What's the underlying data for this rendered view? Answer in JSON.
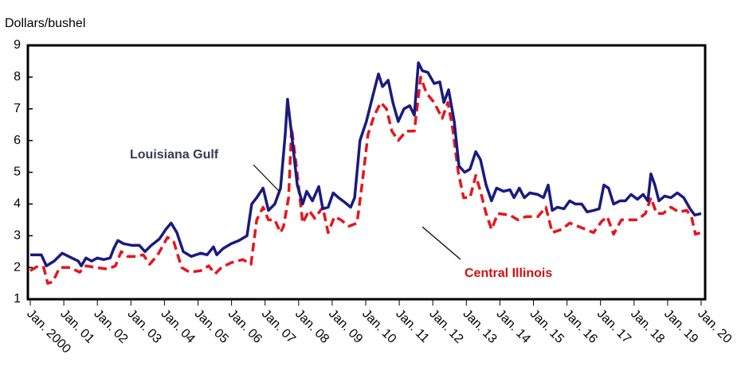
{
  "chart_data": {
    "type": "line",
    "ylabel": "Dollars/bushel",
    "ylim": [
      1,
      9
    ],
    "yticks": [
      1,
      2,
      3,
      4,
      5,
      6,
      7,
      8,
      9
    ],
    "xlim": [
      2000,
      2020
    ],
    "xticks": [
      {
        "value": 2000,
        "label": "Jan. 2000"
      },
      {
        "value": 2001,
        "label": "Jan. 01"
      },
      {
        "value": 2002,
        "label": "Jan. 02"
      },
      {
        "value": 2003,
        "label": "Jan. 03"
      },
      {
        "value": 2004,
        "label": "Jan. 04"
      },
      {
        "value": 2005,
        "label": "Jan. 05"
      },
      {
        "value": 2006,
        "label": "Jan. 06"
      },
      {
        "value": 2007,
        "label": "Jan. 07"
      },
      {
        "value": 2008,
        "label": "Jan. 08"
      },
      {
        "value": 2009,
        "label": "Jan. 09"
      },
      {
        "value": 2010,
        "label": "Jan. 10"
      },
      {
        "value": 2011,
        "label": "Jan. 11"
      },
      {
        "value": 2012,
        "label": "Jan. 12"
      },
      {
        "value": 2013,
        "label": "Jan. 13"
      },
      {
        "value": 2014,
        "label": "Jan. 14"
      },
      {
        "value": 2015,
        "label": "Jan. 15"
      },
      {
        "value": 2016,
        "label": "Jan. 16"
      },
      {
        "value": 2017,
        "label": "Jan. 17"
      },
      {
        "value": 2018,
        "label": "Jan. 18"
      },
      {
        "value": 2019,
        "label": "Jan. 19"
      },
      {
        "value": 2020,
        "label": "Jan. 20"
      }
    ],
    "series": [
      {
        "name": "Louisiana Gulf",
        "color": "#1a1a80",
        "dashed": false,
        "x": [
          2000,
          2000.33,
          2000.48,
          2000.71,
          2000.95,
          2001.24,
          2001.43,
          2001.52,
          2001.66,
          2001.83,
          2002.0,
          2002.19,
          2002.38,
          2002.49,
          2002.61,
          2002.78,
          2003.02,
          2003.25,
          2003.42,
          2003.61,
          2003.85,
          2004.04,
          2004.2,
          2004.37,
          2004.56,
          2004.8,
          2005.08,
          2005.27,
          2005.46,
          2005.56,
          2005.75,
          2005.99,
          2006.22,
          2006.46,
          2006.6,
          2006.75,
          2006.94,
          2007.1,
          2007.29,
          2007.46,
          2007.6,
          2007.67,
          2007.79,
          2007.96,
          2008.12,
          2008.24,
          2008.41,
          2008.6,
          2008.72,
          2008.88,
          2009.03,
          2009.19,
          2009.38,
          2009.55,
          2009.67,
          2009.83,
          2010.02,
          2010.21,
          2010.38,
          2010.5,
          2010.67,
          2010.81,
          2010.97,
          2011.14,
          2011.31,
          2011.45,
          2011.57,
          2011.69,
          2011.85,
          2012.04,
          2012.21,
          2012.33,
          2012.47,
          2012.64,
          2012.78,
          2012.95,
          2013.11,
          2013.28,
          2013.42,
          2013.59,
          2013.75,
          2013.9,
          2014.11,
          2014.3,
          2014.42,
          2014.58,
          2014.73,
          2014.89,
          2015.13,
          2015.3,
          2015.44,
          2015.56,
          2015.72,
          2015.91,
          2016.08,
          2016.25,
          2016.44,
          2016.6,
          2016.79,
          2016.96,
          2017.1,
          2017.24,
          2017.39,
          2017.58,
          2017.74,
          2017.91,
          2018.1,
          2018.27,
          2018.41,
          2018.5,
          2018.62,
          2018.74,
          2018.91,
          2019.1,
          2019.29,
          2019.48,
          2019.67,
          2019.81,
          2020.0
        ],
        "values": [
          2.4,
          2.4,
          2.05,
          2.2,
          2.45,
          2.3,
          2.2,
          2.05,
          2.3,
          2.2,
          2.3,
          2.25,
          2.3,
          2.6,
          2.85,
          2.75,
          2.7,
          2.7,
          2.5,
          2.7,
          2.9,
          3.2,
          3.4,
          3.1,
          2.5,
          2.35,
          2.45,
          2.4,
          2.65,
          2.4,
          2.6,
          2.75,
          2.85,
          3.0,
          4.0,
          4.2,
          4.5,
          3.8,
          4.0,
          4.5,
          6.2,
          7.3,
          6.2,
          4.6,
          4.0,
          4.4,
          4.1,
          4.55,
          3.85,
          3.9,
          4.35,
          4.2,
          4.05,
          3.9,
          4.2,
          6.0,
          6.6,
          7.4,
          8.1,
          7.7,
          7.9,
          7.2,
          6.6,
          7.0,
          7.1,
          6.8,
          8.45,
          8.2,
          8.15,
          7.8,
          7.85,
          7.2,
          7.6,
          6.6,
          5.2,
          5.0,
          5.1,
          5.65,
          5.4,
          4.6,
          4.1,
          4.5,
          4.4,
          4.45,
          4.2,
          4.5,
          4.2,
          4.35,
          4.3,
          4.2,
          4.6,
          3.8,
          3.9,
          3.85,
          4.1,
          4.0,
          4.0,
          3.75,
          3.8,
          3.85,
          4.6,
          4.5,
          4.0,
          4.1,
          4.1,
          4.3,
          4.15,
          4.3,
          4.1,
          4.95,
          4.6,
          4.1,
          4.25,
          4.2,
          4.35,
          4.2,
          3.85,
          3.65,
          3.7
        ]
      },
      {
        "name": "Central Illinois",
        "color": "#e8141c",
        "dashed": true,
        "x": [
          2000,
          2000.24,
          2000.4,
          2000.52,
          2000.67,
          2000.88,
          2001.19,
          2001.47,
          2001.66,
          2001.95,
          2002.3,
          2002.54,
          2002.71,
          2002.9,
          2003.14,
          2003.37,
          2003.56,
          2003.8,
          2004.09,
          2004.28,
          2004.51,
          2004.75,
          2005.08,
          2005.32,
          2005.51,
          2005.7,
          2005.99,
          2006.34,
          2006.58,
          2006.75,
          2006.94,
          2007.1,
          2007.29,
          2007.46,
          2007.55,
          2007.7,
          2007.79,
          2007.93,
          2008.12,
          2008.31,
          2008.48,
          2008.72,
          2008.88,
          2009.07,
          2009.26,
          2009.5,
          2009.74,
          2009.9,
          2010.07,
          2010.26,
          2010.45,
          2010.62,
          2010.78,
          2010.97,
          2011.21,
          2011.45,
          2011.64,
          2011.81,
          2012.04,
          2012.28,
          2012.45,
          2012.59,
          2012.76,
          2012.92,
          2013.11,
          2013.28,
          2013.42,
          2013.59,
          2013.75,
          2013.94,
          2014.3,
          2014.54,
          2014.77,
          2015.13,
          2015.37,
          2015.56,
          2015.84,
          2016.08,
          2016.32,
          2016.56,
          2016.79,
          2017.03,
          2017.2,
          2017.39,
          2017.62,
          2017.86,
          2018.1,
          2018.34,
          2018.5,
          2018.67,
          2018.86,
          2019.1,
          2019.33,
          2019.57,
          2019.71,
          2019.83,
          2020.0
        ],
        "values": [
          1.9,
          2.05,
          2.0,
          1.5,
          1.55,
          2.0,
          2.0,
          1.85,
          2.05,
          2.0,
          1.95,
          2.05,
          2.5,
          2.35,
          2.35,
          2.4,
          2.1,
          2.4,
          2.95,
          2.8,
          2.0,
          1.85,
          1.9,
          2.05,
          1.8,
          2.0,
          2.15,
          2.25,
          2.1,
          3.5,
          3.9,
          3.5,
          3.5,
          3.1,
          3.3,
          4.2,
          6.4,
          5.2,
          3.4,
          3.8,
          3.55,
          3.9,
          3.1,
          3.6,
          3.5,
          3.3,
          3.4,
          4.7,
          6.2,
          6.8,
          7.2,
          7.0,
          6.3,
          6.0,
          6.3,
          6.3,
          8.0,
          7.5,
          7.2,
          6.7,
          7.2,
          6.4,
          5.0,
          4.2,
          4.2,
          4.9,
          4.4,
          3.7,
          3.2,
          3.7,
          3.65,
          3.5,
          3.6,
          3.6,
          3.9,
          3.1,
          3.2,
          3.4,
          3.3,
          3.2,
          3.1,
          3.45,
          3.6,
          3.05,
          3.5,
          3.5,
          3.5,
          3.7,
          4.2,
          3.7,
          3.7,
          3.9,
          3.75,
          3.8,
          3.6,
          3.05,
          3.1
        ]
      }
    ]
  }
}
